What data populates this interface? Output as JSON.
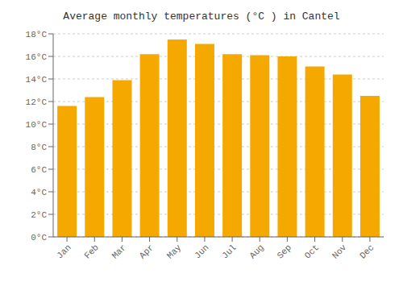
{
  "chart_data": {
    "type": "bar",
    "title": "Average monthly temperatures (°C ) in Cantel",
    "categories": [
      "Jan",
      "Feb",
      "Mar",
      "Apr",
      "May",
      "Jun",
      "Jul",
      "Aug",
      "Sep",
      "Oct",
      "Nov",
      "Dec"
    ],
    "values": [
      11.6,
      12.4,
      13.9,
      16.2,
      17.5,
      17.1,
      16.2,
      16.1,
      16.0,
      15.1,
      14.4,
      12.5
    ],
    "color": "#F5A800",
    "ylim": [
      0,
      18
    ],
    "yticks": [
      {
        "value": 0,
        "label": "0°C"
      },
      {
        "value": 2,
        "label": "2°C"
      },
      {
        "value": 4,
        "label": "4°C"
      },
      {
        "value": 6,
        "label": "6°C"
      },
      {
        "value": 8,
        "label": "8°C"
      },
      {
        "value": 10,
        "label": "10°C"
      },
      {
        "value": 12,
        "label": "12°C"
      },
      {
        "value": 14,
        "label": "14°C"
      },
      {
        "value": 16,
        "label": "16°C"
      },
      {
        "value": 18,
        "label": "18°C"
      }
    ],
    "grid": true
  }
}
